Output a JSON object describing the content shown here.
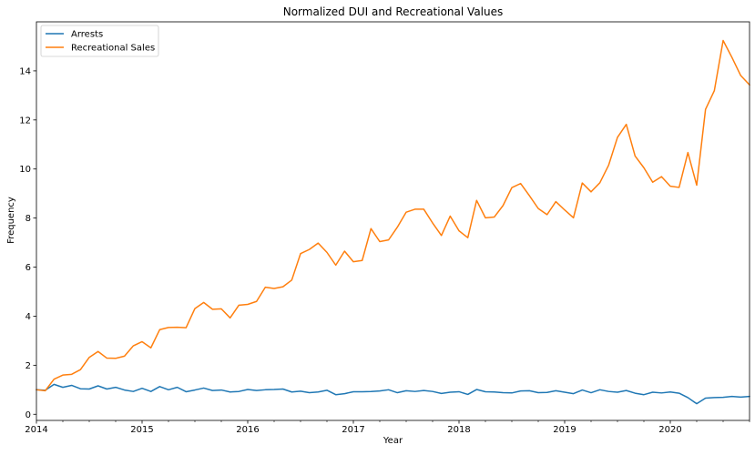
{
  "chart_data": {
    "type": "line",
    "title": "Normalized DUI and Recreational Values",
    "xlabel": "Year",
    "ylabel": "Frequency",
    "x_range": [
      "2014-01",
      "2020-10"
    ],
    "ylim": [
      -0.25,
      16
    ],
    "x_ticks": [
      "2014",
      "2015",
      "2016",
      "2017",
      "2018",
      "2019",
      "2020"
    ],
    "y_ticks": [
      0,
      2,
      4,
      6,
      8,
      10,
      12,
      14
    ],
    "grid": false,
    "legend_position": "top-left",
    "x": [
      "2014-01",
      "2014-02",
      "2014-03",
      "2014-04",
      "2014-05",
      "2014-06",
      "2014-07",
      "2014-08",
      "2014-09",
      "2014-10",
      "2014-11",
      "2014-12",
      "2015-01",
      "2015-02",
      "2015-03",
      "2015-04",
      "2015-05",
      "2015-06",
      "2015-07",
      "2015-08",
      "2015-09",
      "2015-10",
      "2015-11",
      "2015-12",
      "2016-01",
      "2016-02",
      "2016-03",
      "2016-04",
      "2016-05",
      "2016-06",
      "2016-07",
      "2016-08",
      "2016-09",
      "2016-10",
      "2016-11",
      "2016-12",
      "2017-01",
      "2017-02",
      "2017-03",
      "2017-04",
      "2017-05",
      "2017-06",
      "2017-07",
      "2017-08",
      "2017-09",
      "2017-10",
      "2017-11",
      "2017-12",
      "2018-01",
      "2018-02",
      "2018-03",
      "2018-04",
      "2018-05",
      "2018-06",
      "2018-07",
      "2018-08",
      "2018-09",
      "2018-10",
      "2018-11",
      "2018-12",
      "2019-01",
      "2019-02",
      "2019-03",
      "2019-04",
      "2019-05",
      "2019-06",
      "2019-07",
      "2019-08",
      "2019-09",
      "2019-10",
      "2019-11",
      "2019-12",
      "2020-01",
      "2020-02",
      "2020-03",
      "2020-04",
      "2020-05",
      "2020-06",
      "2020-07",
      "2020-08",
      "2020-09",
      "2020-10"
    ],
    "series": [
      {
        "name": "Arrests",
        "color": "#1f77b4",
        "values": [
          1.0,
          0.98,
          1.22,
          1.1,
          1.18,
          1.04,
          1.03,
          1.16,
          1.03,
          1.1,
          0.99,
          0.93,
          1.06,
          0.93,
          1.13,
          1.0,
          1.1,
          0.92,
          0.99,
          1.07,
          0.97,
          0.99,
          0.91,
          0.93,
          1.01,
          0.97,
          1.0,
          1.01,
          1.03,
          0.91,
          0.94,
          0.88,
          0.91,
          0.98,
          0.8,
          0.84,
          0.92,
          0.92,
          0.93,
          0.95,
          1.0,
          0.88,
          0.96,
          0.93,
          0.97,
          0.93,
          0.85,
          0.9,
          0.92,
          0.81,
          1.01,
          0.92,
          0.91,
          0.88,
          0.87,
          0.95,
          0.96,
          0.88,
          0.89,
          0.96,
          0.9,
          0.84,
          0.99,
          0.88,
          1.0,
          0.93,
          0.9,
          0.97,
          0.86,
          0.8,
          0.9,
          0.87,
          0.91,
          0.86,
          0.68,
          0.43,
          0.66,
          0.68,
          0.69,
          0.73,
          0.7,
          0.73
        ]
      },
      {
        "name": "Recreational Sales",
        "color": "#ff7f0e",
        "values": [
          1.0,
          0.96,
          1.43,
          1.6,
          1.63,
          1.82,
          2.32,
          2.56,
          2.29,
          2.28,
          2.37,
          2.79,
          2.96,
          2.71,
          3.45,
          3.54,
          3.55,
          3.53,
          4.31,
          4.56,
          4.28,
          4.3,
          3.93,
          4.45,
          4.48,
          4.6,
          5.18,
          5.13,
          5.2,
          5.47,
          6.55,
          6.72,
          6.98,
          6.6,
          6.08,
          6.65,
          6.22,
          6.27,
          7.57,
          7.04,
          7.11,
          7.63,
          8.24,
          8.36,
          8.36,
          7.8,
          7.29,
          8.08,
          7.48,
          7.2,
          8.72,
          8.01,
          8.04,
          8.51,
          9.24,
          9.41,
          8.91,
          8.39,
          8.14,
          8.67,
          8.33,
          8.01,
          9.43,
          9.07,
          9.44,
          10.16,
          11.29,
          11.82,
          10.53,
          10.05,
          9.46,
          9.69,
          9.3,
          9.25,
          10.67,
          9.34,
          12.43,
          13.19,
          15.24,
          14.55,
          13.81,
          13.43
        ]
      }
    ]
  }
}
